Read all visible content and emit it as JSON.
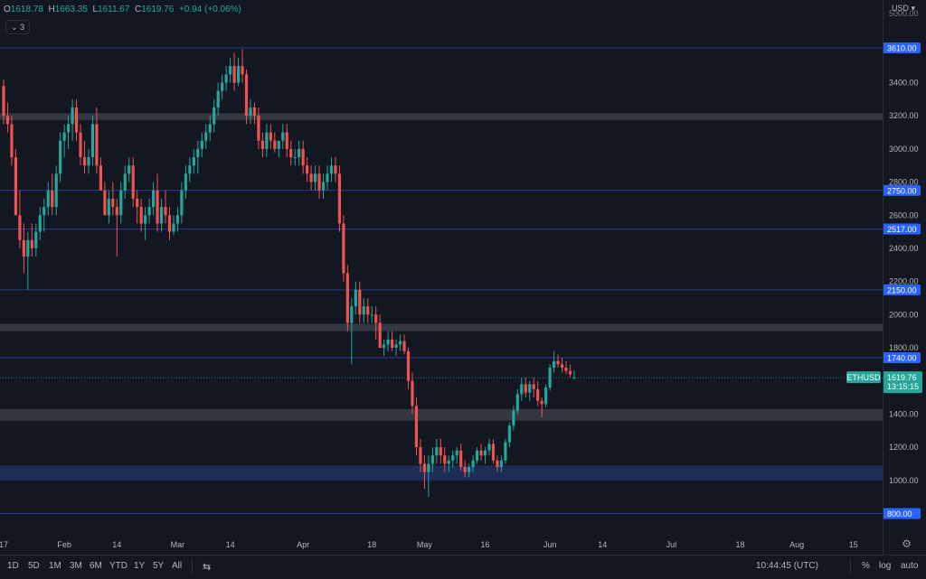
{
  "header": {
    "open_label": "O",
    "open": "1618.78",
    "high_label": "H",
    "high": "1663.35",
    "low_label": "L",
    "low": "1611.67",
    "close_label": "C",
    "close": "1619.76",
    "change": "+0.94 (+0.06%)",
    "indicator_badge": "3",
    "currency": "USD"
  },
  "colors": {
    "background": "#131722",
    "up": "#26a69a",
    "down": "#ef5350",
    "level_line": "#2a3a8a",
    "level_label": "#2962ff",
    "zone_gray": "#3a3d46",
    "zone_blue": "#1e2e5a"
  },
  "chart_data": {
    "type": "candlestick",
    "symbol": "ETHUSD",
    "current_price": "1619.76",
    "countdown": "13:15:15",
    "ylim": [
      700,
      5000
    ],
    "y_ticks": [
      "1000.00",
      "1200.00",
      "1400.00",
      "1600.00",
      "1800.00",
      "2000.00",
      "2200.00",
      "2400.00",
      "2600.00",
      "2800.00",
      "3000.00",
      "3200.00",
      "3400.00"
    ],
    "y_tick_values": [
      1000,
      1200,
      1400,
      1600,
      1800,
      2000,
      2200,
      2400,
      2600,
      2800,
      3000,
      3200,
      3400
    ],
    "top_tick": "5000.00",
    "level_lines": [
      {
        "value": 3610,
        "label": "3610.00"
      },
      {
        "value": 2750,
        "label": "2750.00"
      },
      {
        "value": 2517,
        "label": "2517.00"
      },
      {
        "value": 2150,
        "label": "2150.00"
      },
      {
        "value": 1740,
        "label": "1740.00"
      },
      {
        "value": 800,
        "label": "800.00"
      }
    ],
    "zones": [
      {
        "low": 3175,
        "high": 3215,
        "color": "gray"
      },
      {
        "low": 1900,
        "high": 1945,
        "color": "gray"
      },
      {
        "low": 1360,
        "high": 1430,
        "color": "gray"
      },
      {
        "low": 1000,
        "high": 1090,
        "color": "blue"
      }
    ],
    "x_ticks": [
      {
        "label": "17",
        "day": 0
      },
      {
        "label": "Feb",
        "day": 15
      },
      {
        "label": "14",
        "day": 28
      },
      {
        "label": "Mar",
        "day": 43
      },
      {
        "label": "14",
        "day": 56
      },
      {
        "label": "Apr",
        "day": 74
      },
      {
        "label": "18",
        "day": 91
      },
      {
        "label": "May",
        "day": 104
      },
      {
        "label": "16",
        "day": 119
      },
      {
        "label": "Jun",
        "day": 135
      },
      {
        "label": "14",
        "day": 148
      },
      {
        "label": "Jul",
        "day": 165
      },
      {
        "label": "18",
        "day": 182
      },
      {
        "label": "Aug",
        "day": 196
      },
      {
        "label": "15",
        "day": 210
      }
    ],
    "candles": [
      [
        3380,
        3420,
        3150,
        3200
      ],
      [
        3200,
        3280,
        3100,
        3150
      ],
      [
        3150,
        3200,
        2900,
        2950
      ],
      [
        2950,
        3000,
        2600,
        2600
      ],
      [
        2600,
        2750,
        2400,
        2450
      ],
      [
        2450,
        2550,
        2250,
        2350
      ],
      [
        2350,
        2500,
        2150,
        2450
      ],
      [
        2450,
        2550,
        2350,
        2400
      ],
      [
        2400,
        2550,
        2350,
        2500
      ],
      [
        2500,
        2650,
        2450,
        2600
      ],
      [
        2600,
        2700,
        2500,
        2650
      ],
      [
        2650,
        2800,
        2600,
        2750
      ],
      [
        2750,
        2850,
        2600,
        2650
      ],
      [
        2650,
        2900,
        2600,
        2850
      ],
      [
        2850,
        3100,
        2800,
        3050
      ],
      [
        3050,
        3150,
        2950,
        3100
      ],
      [
        3100,
        3200,
        3000,
        3150
      ],
      [
        3150,
        3300,
        3050,
        3250
      ],
      [
        3250,
        3300,
        3050,
        3100
      ],
      [
        3100,
        3150,
        2900,
        2950
      ],
      [
        2950,
        3050,
        2850,
        2900
      ],
      [
        2900,
        3000,
        2850,
        2950
      ],
      [
        2950,
        3200,
        2900,
        3150
      ],
      [
        3150,
        3250,
        2850,
        2900
      ],
      [
        2900,
        2950,
        2750,
        2750
      ],
      [
        2750,
        2800,
        2600,
        2600
      ],
      [
        2600,
        2750,
        2550,
        2700
      ],
      [
        2700,
        2800,
        2600,
        2650
      ],
      [
        2650,
        2700,
        2350,
        2600
      ],
      [
        2600,
        2800,
        2550,
        2750
      ],
      [
        2750,
        2900,
        2700,
        2850
      ],
      [
        2850,
        2950,
        2800,
        2900
      ],
      [
        2900,
        2950,
        2650,
        2700
      ],
      [
        2700,
        2750,
        2550,
        2650
      ],
      [
        2650,
        2700,
        2500,
        2550
      ],
      [
        2550,
        2650,
        2450,
        2600
      ],
      [
        2600,
        2700,
        2550,
        2650
      ],
      [
        2650,
        2800,
        2600,
        2750
      ],
      [
        2750,
        2850,
        2500,
        2550
      ],
      [
        2550,
        2700,
        2500,
        2650
      ],
      [
        2650,
        2750,
        2550,
        2600
      ],
      [
        2600,
        2650,
        2450,
        2500
      ],
      [
        2500,
        2600,
        2480,
        2550
      ],
      [
        2550,
        2650,
        2500,
        2600
      ],
      [
        2600,
        2800,
        2550,
        2750
      ],
      [
        2750,
        2900,
        2700,
        2850
      ],
      [
        2850,
        2950,
        2800,
        2900
      ],
      [
        2900,
        3000,
        2850,
        2950
      ],
      [
        2950,
        3050,
        2850,
        3000
      ],
      [
        3000,
        3100,
        2950,
        3050
      ],
      [
        3050,
        3150,
        3000,
        3100
      ],
      [
        3100,
        3200,
        3050,
        3150
      ],
      [
        3150,
        3300,
        3100,
        3250
      ],
      [
        3250,
        3400,
        3200,
        3350
      ],
      [
        3350,
        3450,
        3300,
        3400
      ],
      [
        3400,
        3500,
        3350,
        3450
      ],
      [
        3450,
        3550,
        3400,
        3500
      ],
      [
        3500,
        3580,
        3350,
        3400
      ],
      [
        3400,
        3550,
        3380,
        3500
      ],
      [
        3500,
        3600,
        3400,
        3450
      ],
      [
        3450,
        3480,
        3150,
        3200
      ],
      [
        3200,
        3300,
        3150,
        3250
      ],
      [
        3250,
        3280,
        3150,
        3200
      ],
      [
        3200,
        3250,
        3000,
        3050
      ],
      [
        3050,
        3100,
        2950,
        3000
      ],
      [
        3000,
        3150,
        2950,
        3100
      ],
      [
        3100,
        3150,
        3000,
        3050
      ],
      [
        3050,
        3100,
        2980,
        3000
      ],
      [
        3000,
        3050,
        2950,
        3050
      ],
      [
        3050,
        3150,
        3000,
        3100
      ],
      [
        3100,
        3150,
        2950,
        3000
      ],
      [
        3000,
        3050,
        2900,
        2950
      ],
      [
        2950,
        3000,
        2900,
        2950
      ],
      [
        2950,
        3050,
        2900,
        3000
      ],
      [
        3000,
        3050,
        2850,
        2900
      ],
      [
        2900,
        2950,
        2800,
        2850
      ],
      [
        2850,
        2900,
        2750,
        2800
      ],
      [
        2800,
        2900,
        2750,
        2850
      ],
      [
        2850,
        2900,
        2700,
        2750
      ],
      [
        2750,
        2850,
        2700,
        2800
      ],
      [
        2800,
        2900,
        2750,
        2850
      ],
      [
        2850,
        2950,
        2800,
        2900
      ],
      [
        2900,
        2950,
        2800,
        2850
      ],
      [
        2850,
        2900,
        2500,
        2550
      ],
      [
        2550,
        2600,
        2200,
        2250
      ],
      [
        2250,
        2300,
        1900,
        1950
      ],
      [
        1950,
        2100,
        1700,
        2050
      ],
      [
        2050,
        2200,
        2000,
        2150
      ],
      [
        2150,
        2200,
        1950,
        2000
      ],
      [
        2000,
        2100,
        1950,
        2050
      ],
      [
        2050,
        2100,
        1950,
        2000
      ],
      [
        2000,
        2050,
        1950,
        2000
      ],
      [
        2000,
        2050,
        1850,
        1950
      ],
      [
        1950,
        2000,
        1800,
        1800
      ],
      [
        1800,
        1850,
        1750,
        1820
      ],
      [
        1820,
        1900,
        1780,
        1850
      ],
      [
        1850,
        1900,
        1780,
        1800
      ],
      [
        1800,
        1850,
        1750,
        1820
      ],
      [
        1820,
        1880,
        1780,
        1840
      ],
      [
        1840,
        1880,
        1760,
        1780
      ],
      [
        1780,
        1800,
        1550,
        1600
      ],
      [
        1600,
        1650,
        1400,
        1450
      ],
      [
        1450,
        1500,
        1150,
        1200
      ],
      [
        1200,
        1250,
        1050,
        1100
      ],
      [
        1100,
        1150,
        950,
        1050
      ],
      [
        1050,
        1150,
        900,
        1100
      ],
      [
        1100,
        1200,
        1050,
        1150
      ],
      [
        1150,
        1250,
        1100,
        1200
      ],
      [
        1200,
        1250,
        1100,
        1150
      ],
      [
        1150,
        1200,
        1050,
        1100
      ],
      [
        1100,
        1150,
        1050,
        1120
      ],
      [
        1120,
        1180,
        1080,
        1150
      ],
      [
        1150,
        1200,
        1100,
        1180
      ],
      [
        1180,
        1220,
        1060,
        1080
      ],
      [
        1080,
        1120,
        1020,
        1050
      ],
      [
        1050,
        1100,
        1020,
        1080
      ],
      [
        1080,
        1150,
        1050,
        1120
      ],
      [
        1120,
        1200,
        1100,
        1180
      ],
      [
        1180,
        1220,
        1120,
        1150
      ],
      [
        1150,
        1200,
        1100,
        1180
      ],
      [
        1180,
        1250,
        1150,
        1220
      ],
      [
        1220,
        1250,
        1100,
        1120
      ],
      [
        1120,
        1150,
        1050,
        1080
      ],
      [
        1080,
        1150,
        1050,
        1120
      ],
      [
        1120,
        1250,
        1100,
        1230
      ],
      [
        1230,
        1350,
        1200,
        1330
      ],
      [
        1330,
        1450,
        1300,
        1420
      ],
      [
        1420,
        1550,
        1400,
        1520
      ],
      [
        1520,
        1620,
        1480,
        1580
      ],
      [
        1580,
        1620,
        1500,
        1530
      ],
      [
        1530,
        1600,
        1480,
        1580
      ],
      [
        1580,
        1620,
        1500,
        1550
      ],
      [
        1550,
        1600,
        1450,
        1480
      ],
      [
        1480,
        1500,
        1380,
        1460
      ],
      [
        1460,
        1580,
        1440,
        1560
      ],
      [
        1560,
        1700,
        1540,
        1680
      ],
      [
        1680,
        1780,
        1650,
        1720
      ],
      [
        1720,
        1760,
        1680,
        1700
      ],
      [
        1700,
        1740,
        1650,
        1680
      ],
      [
        1680,
        1720,
        1640,
        1660
      ],
      [
        1660,
        1700,
        1620,
        1640
      ],
      [
        1618.78,
        1663.35,
        1611.67,
        1619.76
      ]
    ]
  },
  "toolbar": {
    "ranges": [
      "1D",
      "5D",
      "1M",
      "3M",
      "6M",
      "YTD",
      "1Y",
      "5Y",
      "All"
    ],
    "time": "10:44:45 (UTC)",
    "percent": "%",
    "log": "log",
    "auto": "auto"
  }
}
